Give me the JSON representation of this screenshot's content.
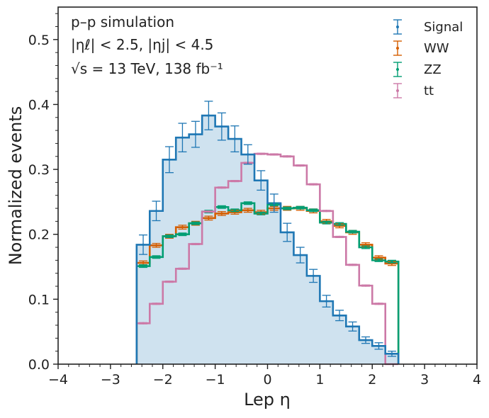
{
  "chart_data": {
    "type": "histogram",
    "title": "",
    "xlabel": "Lep η",
    "ylabel": "Normalized events",
    "xlim": [
      -4,
      4
    ],
    "ylim": [
      0,
      0.55
    ],
    "x_ticks": [
      -4,
      -3,
      -2,
      -1,
      0,
      1,
      2,
      3,
      4
    ],
    "x_tick_labels": [
      "−4",
      "−3",
      "−2",
      "−1",
      "0",
      "1",
      "2",
      "3",
      "4"
    ],
    "y_ticks": [
      0.0,
      0.1,
      0.2,
      0.3,
      0.4,
      0.5
    ],
    "y_tick_labels": [
      "0.0",
      "0.1",
      "0.2",
      "0.3",
      "0.4",
      "0.5"
    ],
    "bin_edges": [
      -2.5,
      -2.25,
      -2.0,
      -1.75,
      -1.5,
      -1.25,
      -1.0,
      -0.75,
      -0.5,
      -0.25,
      0.0,
      0.25,
      0.5,
      0.75,
      1.0,
      1.25,
      1.5,
      1.75,
      2.0,
      2.25,
      2.5
    ],
    "annotations": {
      "line1": "p–p simulation",
      "line2": "|ηℓ| < 2.5, |ηj| < 4.5",
      "line3": "√s = 13 TeV, 138 fb⁻¹"
    },
    "legend_position": "top-right",
    "series": [
      {
        "name": "Signal",
        "color": "#1f77b4",
        "filled": true,
        "fill_color": "#cfe2ef",
        "values": [
          0.184,
          0.236,
          0.315,
          0.349,
          0.354,
          0.383,
          0.366,
          0.347,
          0.323,
          0.283,
          0.248,
          0.203,
          0.168,
          0.136,
          0.097,
          0.075,
          0.058,
          0.037,
          0.028,
          0.016
        ],
        "errors": [
          0.015,
          0.015,
          0.02,
          0.022,
          0.02,
          0.022,
          0.021,
          0.02,
          0.015,
          0.015,
          0.014,
          0.014,
          0.012,
          0.01,
          0.009,
          0.008,
          0.007,
          0.005,
          0.005,
          0.004
        ]
      },
      {
        "name": "WW",
        "color": "#d55e00",
        "filled": false,
        "values": [
          0.156,
          0.183,
          0.197,
          0.211,
          0.217,
          0.225,
          0.232,
          0.234,
          0.237,
          0.234,
          0.24,
          0.24,
          0.24,
          0.236,
          0.22,
          0.213,
          0.203,
          0.184,
          0.164,
          0.155
        ],
        "errors": [
          0.003,
          0.003,
          0.003,
          0.003,
          0.003,
          0.003,
          0.003,
          0.003,
          0.003,
          0.003,
          0.003,
          0.003,
          0.003,
          0.003,
          0.003,
          0.003,
          0.003,
          0.003,
          0.003,
          0.003
        ]
      },
      {
        "name": "ZZ",
        "color": "#009e73",
        "filled": false,
        "values": [
          0.151,
          0.165,
          0.197,
          0.2,
          0.217,
          0.235,
          0.242,
          0.237,
          0.248,
          0.232,
          0.246,
          0.24,
          0.241,
          0.237,
          0.218,
          0.216,
          0.204,
          0.18,
          0.16,
          0.158
        ],
        "errors": [
          0.002,
          0.002,
          0.002,
          0.002,
          0.002,
          0.002,
          0.002,
          0.002,
          0.002,
          0.002,
          0.002,
          0.002,
          0.002,
          0.002,
          0.002,
          0.002,
          0.002,
          0.002,
          0.002,
          0.002
        ]
      },
      {
        "name": "tt",
        "color": "#cc79a7",
        "filled": false,
        "values": [
          0.063,
          0.093,
          0.127,
          0.147,
          0.185,
          0.235,
          0.272,
          0.282,
          0.31,
          0.324,
          0.323,
          0.32,
          0.306,
          0.277,
          0.236,
          0.196,
          0.153,
          0.121,
          0.093,
          0.0
        ],
        "errors": [
          0.001,
          0.001,
          0.001,
          0.001,
          0.001,
          0.001,
          0.001,
          0.001,
          0.001,
          0.001,
          0.001,
          0.001,
          0.001,
          0.001,
          0.001,
          0.001,
          0.001,
          0.001,
          0.001,
          0.001
        ]
      }
    ]
  }
}
